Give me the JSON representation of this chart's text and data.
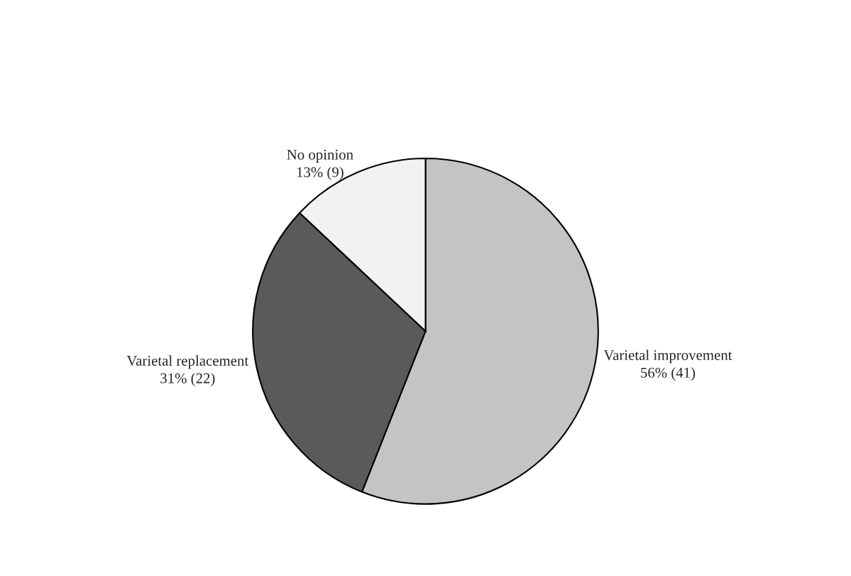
{
  "chart_data": {
    "type": "pie",
    "categories": [
      "Varietal improvement",
      "Varietal replacement",
      "No opinion"
    ],
    "values": [
      56,
      31,
      13
    ],
    "value_labels": [
      "56% (41)",
      "31% (22)",
      "13% (9)"
    ],
    "colors": [
      "#c4c4c4",
      "#5a5a5a",
      "#f2f2f2"
    ]
  }
}
